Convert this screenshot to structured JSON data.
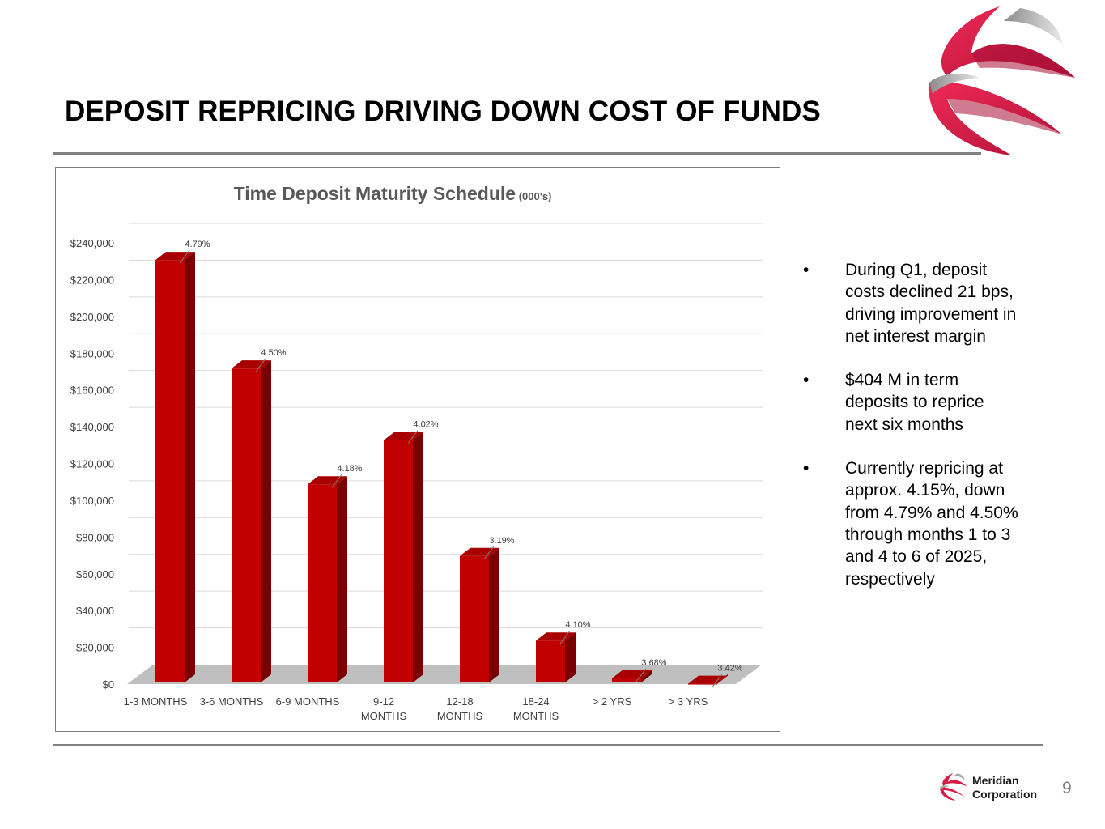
{
  "slide": {
    "title": "DEPOSIT REPRICING DRIVING DOWN COST OF FUNDS",
    "page_number": "9"
  },
  "company": {
    "line1": "Meridian",
    "line2": "Corporation"
  },
  "colors": {
    "bar_front": "#c00000",
    "bar_side": "#7a0000",
    "bar_top": "#a80000",
    "floor": "#bfbfbf",
    "grid": "#d9d9d9",
    "rule": "#808080",
    "logo_red": "#d81e45",
    "logo_gray": "#a6a6a6"
  },
  "bullets": [
    "During Q1, deposit costs declined 21 bps, driving improvement in net interest margin",
    "$404 M in term deposits to reprice next six months",
    "Currently repricing at approx. 4.15%, down from 4.79% and 4.50% through months 1 to 3 and 4 to 6 of 2025, respectively"
  ],
  "bullet_symbol": "•",
  "chart_data": {
    "type": "bar",
    "title": "Time Deposit Maturity Schedule",
    "title_suffix": "(000's)",
    "categories": [
      "1-3 MONTHS",
      "3-6 MONTHS",
      "6-9 MONTHS",
      "9-12 MONTHS",
      "12-18 MONTHS",
      "18-24 MONTHS",
      "> 2 YRS",
      "> 3 YRS"
    ],
    "category_lines": [
      [
        "1-3 MONTHS"
      ],
      [
        "3-6 MONTHS"
      ],
      [
        "6-9 MONTHS"
      ],
      [
        "9-12",
        "MONTHS"
      ],
      [
        "12-18",
        "MONTHS"
      ],
      [
        "18-24",
        "MONTHS"
      ],
      [
        "> 2 YRS"
      ],
      [
        "> 3 YRS"
      ]
    ],
    "values": [
      232000,
      173000,
      110000,
      134000,
      71000,
      25000,
      4500,
      1500
    ],
    "data_labels": [
      "4.79%",
      "4.50%",
      "4.18%",
      "4.02%",
      "3.19%",
      "4.10%",
      "3.68%",
      "3.42%"
    ],
    "ylim": [
      0,
      240000
    ],
    "ytick_step": 20000,
    "ytick_labels": [
      "$0",
      "$20,000",
      "$40,000",
      "$60,000",
      "$80,000",
      "$100,000",
      "$120,000",
      "$140,000",
      "$160,000",
      "$180,000",
      "$200,000",
      "$220,000",
      "$240,000"
    ],
    "grid": true,
    "legend": "none",
    "xlabel": "",
    "ylabel": ""
  }
}
